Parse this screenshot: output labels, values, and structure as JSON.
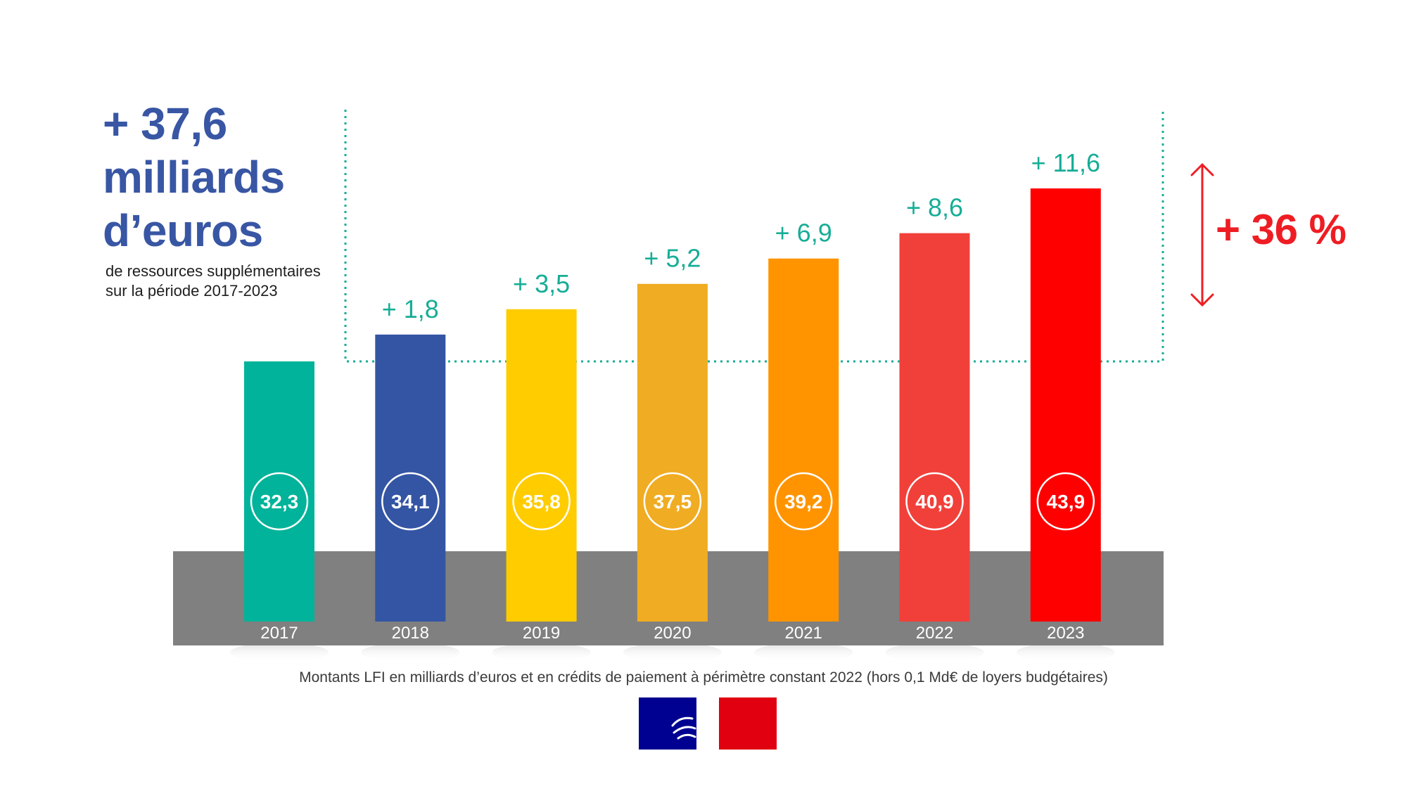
{
  "headline": {
    "total": "+ 37,6",
    "unit_line1": "milliards",
    "unit_line2": "d’euros",
    "subtitle_line1": "de ressources supplémentaires",
    "subtitle_line2": "sur la période 2017-2023"
  },
  "growth_label": "+ 36 %",
  "caption": "Montants LFI en milliards d’euros et en crédits de paiement à périmètre constant 2022 (hors 0,1 Md€ de loyers budgétaires)",
  "colors": {
    "title_blue": "#3856a4",
    "increment_green": "#16ad96",
    "growth_red": "#ee1d23",
    "base_band": "#808080"
  },
  "icons": {
    "growth_arrow": "double-arrow-vertical-icon",
    "flag_logo": "republique-francaise-marianne-logo-icon"
  },
  "chart_data": {
    "type": "bar",
    "title": "",
    "xlabel": "",
    "ylabel": "",
    "ylim": [
      20,
      46
    ],
    "categories": [
      "2017",
      "2018",
      "2019",
      "2020",
      "2021",
      "2022",
      "2023"
    ],
    "values": [
      32.3,
      34.1,
      35.8,
      37.5,
      39.2,
      40.9,
      43.9
    ],
    "value_labels": [
      "32,3",
      "34,1",
      "35,8",
      "37,5",
      "39,2",
      "40,9",
      "43,9"
    ],
    "increment_labels": [
      "",
      "+ 1,8",
      "+ 3,5",
      "+ 5,2",
      "+ 6,9",
      "+ 8,6",
      "+ 11,6"
    ],
    "bar_colors": [
      "#00b39a",
      "#3455a4",
      "#ffcc00",
      "#f0ac22",
      "#ff9400",
      "#f1403a",
      "#ff0000"
    ],
    "grid": false,
    "legend": "none"
  }
}
